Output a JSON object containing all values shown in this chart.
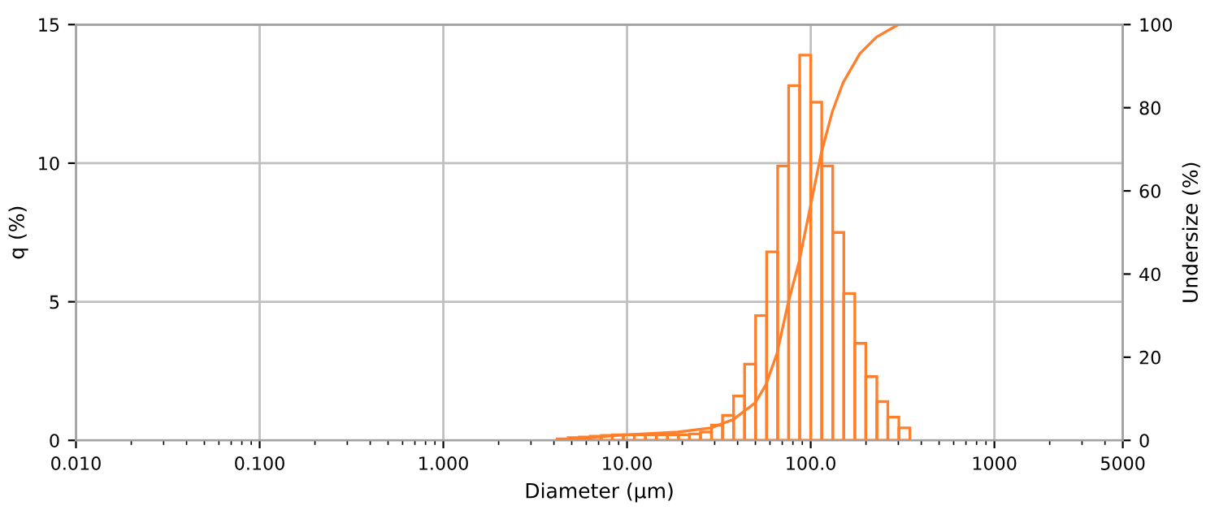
{
  "chart_data": {
    "type": "histogram",
    "xlabel": "Diameter (µm)",
    "ylabel": "q (%)",
    "y2label": "Undersize (%)",
    "log": "x",
    "grid": true,
    "xlim": [
      0.01,
      5000
    ],
    "xticks": [
      {
        "value": 0.01,
        "label": "0.010"
      },
      {
        "value": 0.1,
        "label": "0.100"
      },
      {
        "value": 1,
        "label": "1.000"
      },
      {
        "value": 10,
        "label": "10.00"
      },
      {
        "value": 100,
        "label": "100.0"
      },
      1000,
      5000
    ],
    "ylim": [
      0,
      15
    ],
    "yticks": [
      0,
      5,
      10,
      15
    ],
    "y2lim": [
      0,
      100
    ],
    "y2ticks": [
      0,
      20,
      40,
      60,
      80,
      100
    ],
    "series": [
      {
        "color": "#ff7f2a",
        "bins": [
          4.169,
          4.786,
          5.495,
          6.31,
          7.244,
          8.318,
          9.55,
          10.96,
          12.59,
          14.45,
          16.6,
          19.05,
          21.88,
          25.12,
          28.84,
          33.11,
          38.02,
          43.65,
          50.12,
          57.54,
          66.07,
          75.86,
          87.1,
          100,
          114.8,
          131.8,
          151.4,
          173.8,
          199.5,
          229.1,
          263.0,
          302.0,
          346.7
        ],
        "values": [
          0.05,
          0.1,
          0.12,
          0.15,
          0.18,
          0.2,
          0.2,
          0.2,
          0.2,
          0.2,
          0.2,
          0.2,
          0.23,
          0.3,
          0.55,
          0.9,
          1.6,
          2.75,
          4.5,
          6.8,
          9.9,
          12.8,
          13.9,
          12.2,
          9.9,
          7.5,
          5.3,
          3.5,
          2.3,
          1.4,
          0.84,
          0.45
        ]
      },
      {
        "type": "line",
        "axis": "y2",
        "color": "#ff7f2a",
        "x": [
          4.14,
          9.5,
          18.9,
          28.6,
          37.8,
          49.8,
          57.1,
          65.6,
          75.3,
          86.5,
          99.3,
          114,
          131,
          150,
          185,
          228,
          300
        ],
        "values": [
          0,
          1.3,
          2,
          3,
          5,
          9,
          13.4,
          21,
          33,
          43,
          56,
          69,
          79,
          86,
          93,
          97,
          100
        ]
      }
    ]
  }
}
